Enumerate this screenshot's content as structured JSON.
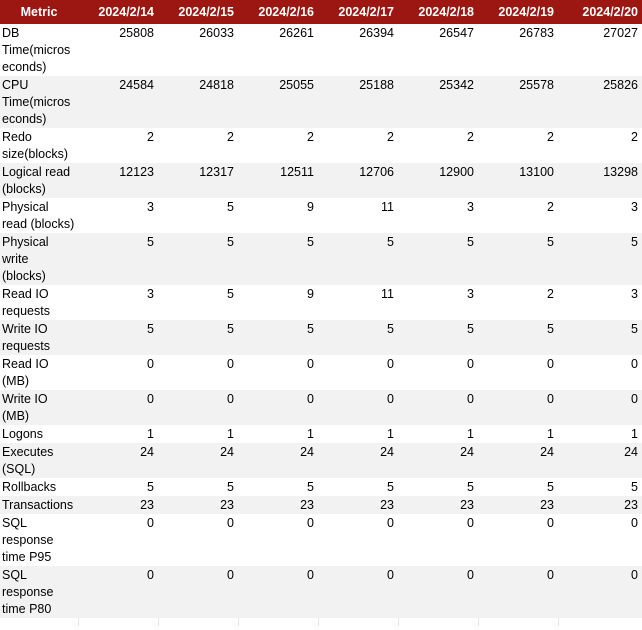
{
  "table": {
    "header": [
      "Metric",
      "2024/2/14",
      "2024/2/15",
      "2024/2/16",
      "2024/2/17",
      "2024/2/18",
      "2024/2/19",
      "2024/2/20"
    ],
    "rows": [
      {
        "metric": "DB Time(microseconds)",
        "values": [
          "25808",
          "26033",
          "26261",
          "26394",
          "26547",
          "26783",
          "27027"
        ]
      },
      {
        "metric": "CPU Time(microseconds)",
        "values": [
          "24584",
          "24818",
          "25055",
          "25188",
          "25342",
          "25578",
          "25826"
        ]
      },
      {
        "metric": "Redo size(blocks)",
        "values": [
          "2",
          "2",
          "2",
          "2",
          "2",
          "2",
          "2"
        ]
      },
      {
        "metric": "Logical read (blocks)",
        "values": [
          "12123",
          "12317",
          "12511",
          "12706",
          "12900",
          "13100",
          "13298"
        ]
      },
      {
        "metric": "Physical read (blocks)",
        "values": [
          "3",
          "5",
          "9",
          "11",
          "3",
          "2",
          "3"
        ]
      },
      {
        "metric": "Physical write (blocks)",
        "values": [
          "5",
          "5",
          "5",
          "5",
          "5",
          "5",
          "5"
        ]
      },
      {
        "metric": "Read IO requests",
        "values": [
          "3",
          "5",
          "9",
          "11",
          "3",
          "2",
          "3"
        ]
      },
      {
        "metric": "Write IO requests",
        "values": [
          "5",
          "5",
          "5",
          "5",
          "5",
          "5",
          "5"
        ]
      },
      {
        "metric": "Read IO (MB)",
        "values": [
          "0",
          "0",
          "0",
          "0",
          "0",
          "0",
          "0"
        ]
      },
      {
        "metric": "Write IO (MB)",
        "values": [
          "0",
          "0",
          "0",
          "0",
          "0",
          "0",
          "0"
        ]
      },
      {
        "metric": "Logons",
        "values": [
          "1",
          "1",
          "1",
          "1",
          "1",
          "1",
          "1"
        ]
      },
      {
        "metric": "Executes (SQL)",
        "values": [
          "24",
          "24",
          "24",
          "24",
          "24",
          "24",
          "24"
        ]
      },
      {
        "metric": "Rollbacks",
        "values": [
          "5",
          "5",
          "5",
          "5",
          "5",
          "5",
          "5"
        ]
      },
      {
        "metric": "Transactions",
        "values": [
          "23",
          "23",
          "23",
          "23",
          "23",
          "23",
          "23"
        ]
      },
      {
        "metric": "SQL response time P95",
        "values": [
          "0",
          "0",
          "0",
          "0",
          "0",
          "0",
          "0"
        ]
      },
      {
        "metric": "SQL response time P80",
        "values": [
          "0",
          "0",
          "0",
          "0",
          "0",
          "0",
          "0"
        ]
      }
    ]
  },
  "colors": {
    "header_bg": "#9c1712",
    "header_text": "#ffffff",
    "alt_row_bg": "#f2f2f2",
    "row_bg": "#ffffff"
  }
}
